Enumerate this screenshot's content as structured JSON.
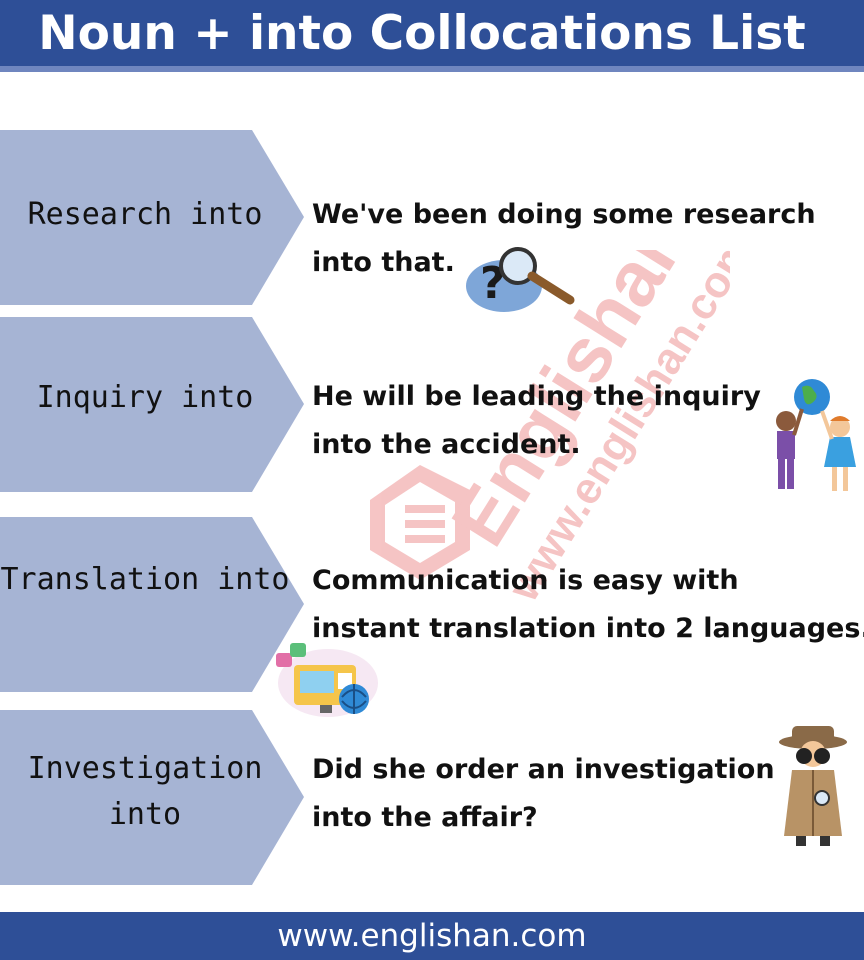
{
  "header": {
    "title": "Noun + into Collocations List"
  },
  "rows": [
    {
      "term_lines": [
        "Research  into"
      ],
      "example_lines": [
        "We've been doing some research",
        "into that."
      ],
      "icon": "magnifier-question-icon"
    },
    {
      "term_lines": [
        "Inquiry  into"
      ],
      "example_lines": [
        "He will be leading the inquiry",
        "into the accident."
      ],
      "icon": "kids-globe-icon"
    },
    {
      "term_lines": [
        "Translation  into"
      ],
      "example_lines": [
        "Communication is easy with",
        "instant translation into 2 languages."
      ],
      "icon": "translation-computer-icon"
    },
    {
      "term_lines": [
        "Investigation",
        "into"
      ],
      "example_lines": [
        "Did she order an investigation",
        "into the affair?"
      ],
      "icon": "detective-binoculars-icon"
    }
  ],
  "watermark": {
    "text": "Englishan",
    "url": "www.englishan.com"
  },
  "footer": {
    "url": "www.englishan.com"
  },
  "colors": {
    "header": "#2e4f97",
    "arrow": "#a6b4d4",
    "watermark": "#e24a4a"
  }
}
